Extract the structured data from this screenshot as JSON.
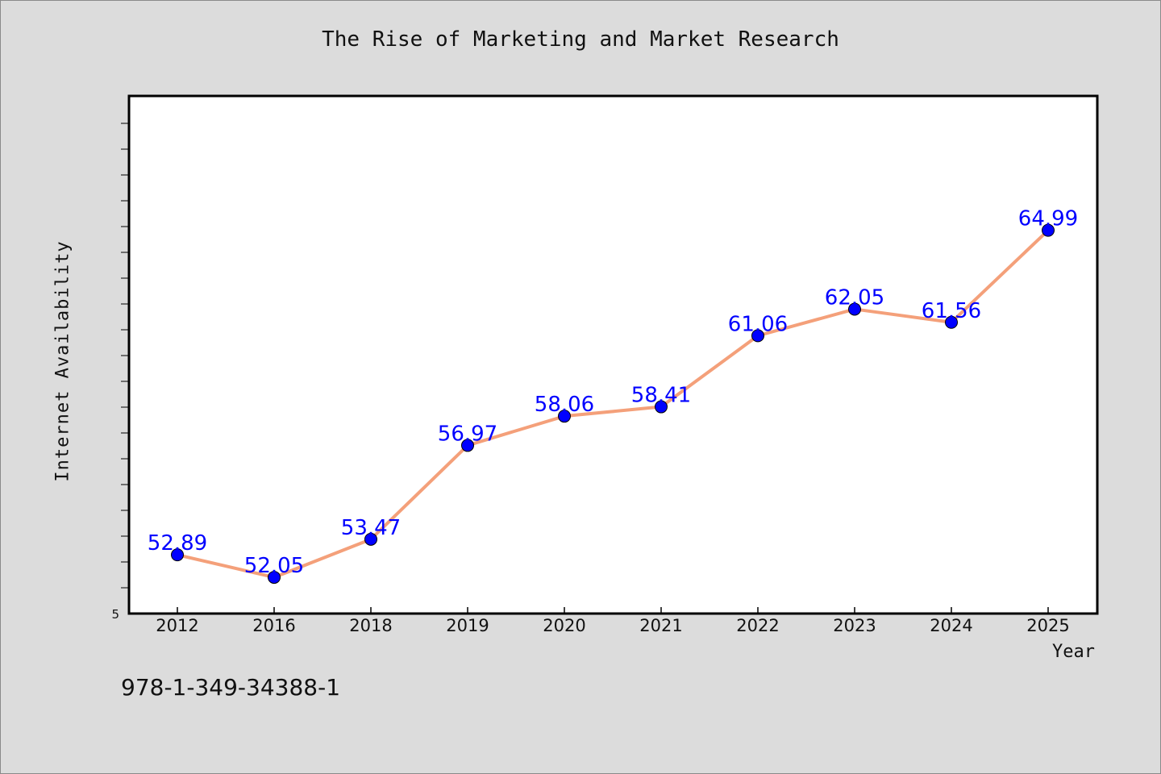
{
  "chart_data": {
    "type": "line",
    "title": "The Rise of Marketing and Market Research",
    "xlabel": "Year",
    "ylabel": "Internet Availability",
    "categories": [
      "2012",
      "2016",
      "2018",
      "2019",
      "2020",
      "2021",
      "2022",
      "2023",
      "2024",
      "2025"
    ],
    "series": [
      {
        "values": [
          52.89,
          52.05,
          53.47,
          56.97,
          58.06,
          58.41,
          61.06,
          62.05,
          61.56,
          64.99
        ]
      }
    ],
    "ylim": [
      50.7,
      70
    ],
    "ytick_label": "5",
    "data_labels": true,
    "grid": false,
    "line_color": "#f4a07a",
    "marker_color": "#0000ff",
    "label_color": "#0000ff"
  },
  "footnote": "978-1-349-34388-1"
}
